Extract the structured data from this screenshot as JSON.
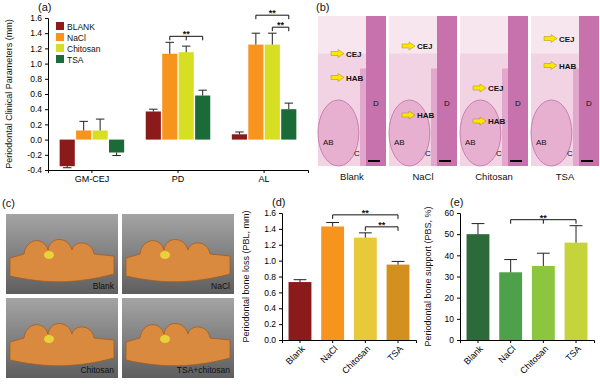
{
  "chart_data": [
    {
      "type": "bar",
      "title": "(a)",
      "y_label": "Periodontal Clinical Parameters (mm)",
      "categories": [
        "GM-CEJ",
        "PD",
        "AL"
      ],
      "series": [
        {
          "name": "BLANK",
          "color": "#8b1a1a",
          "values": [
            -0.35,
            0.37,
            0.07
          ],
          "errors": [
            0.02,
            0.03,
            0.03
          ]
        },
        {
          "name": "NaCl",
          "color": "#f7941d",
          "values": [
            0.12,
            1.13,
            1.25
          ],
          "errors": [
            0.12,
            0.15,
            0.15
          ]
        },
        {
          "name": "Chitosan",
          "color": "#d7df23",
          "values": [
            0.12,
            1.15,
            1.25
          ],
          "errors": [
            0.15,
            0.08,
            0.15
          ]
        },
        {
          "name": "TSA",
          "color": "#1b6b38",
          "values": [
            -0.17,
            0.58,
            0.4
          ],
          "errors": [
            0.04,
            0.07,
            0.08
          ]
        }
      ],
      "ylim": [
        -0.4,
        1.6
      ],
      "yticks": [
        -0.4,
        -0.2,
        {
          "value": 0,
          "label": "0.0"
        },
        0.2,
        0.4,
        0.6,
        0.8,
        {
          "value": 1,
          "label": "1.0"
        },
        1.2,
        1.4,
        1.6
      ],
      "legend": "upper left",
      "annotations": [
        {
          "text": "**",
          "category": "PD",
          "from": [
            "NaCl",
            "Chitosan"
          ],
          "to": "TSA"
        },
        {
          "text": "**",
          "category": "AL",
          "from": [
            "Chitosan"
          ],
          "to": "TSA"
        },
        {
          "text": "**",
          "category": "AL",
          "from": [
            "NaCl"
          ],
          "to": "TSA"
        }
      ]
    },
    {
      "type": "bar",
      "title": "(d)",
      "y_label": "Periodontal bone loss (PBL, mm)",
      "categories": [
        "Blank",
        "NaCl",
        "Chitosan",
        "TSA"
      ],
      "values": [
        0.73,
        1.43,
        1.29,
        0.95
      ],
      "errors": [
        0.03,
        0.05,
        0.06,
        0.04
      ],
      "colors": [
        "#8b1a1a",
        "#f7941d",
        "#e8c93a",
        "#d4901e"
      ],
      "ylim": [
        0,
        1.6
      ],
      "yticks": [
        {
          "value": 0,
          "label": "0.0"
        },
        0.2,
        0.4,
        0.6,
        0.8,
        {
          "value": 1,
          "label": "1.0"
        },
        1.2,
        1.4,
        1.6
      ],
      "annotations": [
        {
          "text": "**",
          "from": [
            "Chitosan"
          ],
          "to": "TSA"
        },
        {
          "text": "**",
          "from": [
            "NaCl"
          ],
          "to": "TSA"
        }
      ]
    },
    {
      "type": "bar",
      "title": "(e)",
      "y_label": "Periodontal bone support (PBS, %)",
      "categories": [
        "Blank",
        "NaCl",
        "Chitosan",
        "TSA"
      ],
      "values": [
        50,
        32,
        35,
        46
      ],
      "errors": [
        5,
        6,
        6,
        8
      ],
      "colors": [
        "#2d6a3a",
        "#4fa04a",
        "#8cc63f",
        "#c5d43a"
      ],
      "ylim": [
        0,
        60
      ],
      "yticks": [
        0,
        10,
        20,
        30,
        40,
        50,
        60
      ],
      "annotations": [
        {
          "text": "**",
          "from": [
            "NaCl",
            "Chitosan"
          ],
          "to": "TSA"
        }
      ]
    }
  ],
  "image_panels": [
    {
      "title": "(b)",
      "images": [
        {
          "caption": "Blank",
          "labels": [
            "CEJ",
            "HAB",
            "AB",
            "C",
            "D"
          ]
        },
        {
          "caption": "NaCl",
          "labels": [
            "CEJ",
            "HAB",
            "AB",
            "C",
            "D"
          ]
        },
        {
          "caption": "Chitosan",
          "labels": [
            "CEJ",
            "HAB",
            "AB",
            "C",
            "D"
          ]
        },
        {
          "caption": "TSA",
          "labels": [
            "CEJ",
            "HAB",
            "AB",
            "C",
            "D"
          ]
        }
      ]
    },
    {
      "title": "(c)",
      "images": [
        {
          "caption": "Blank"
        },
        {
          "caption": "NaCl"
        },
        {
          "caption": "Chitosan"
        },
        {
          "caption": "TSA+chitosan"
        }
      ]
    }
  ]
}
